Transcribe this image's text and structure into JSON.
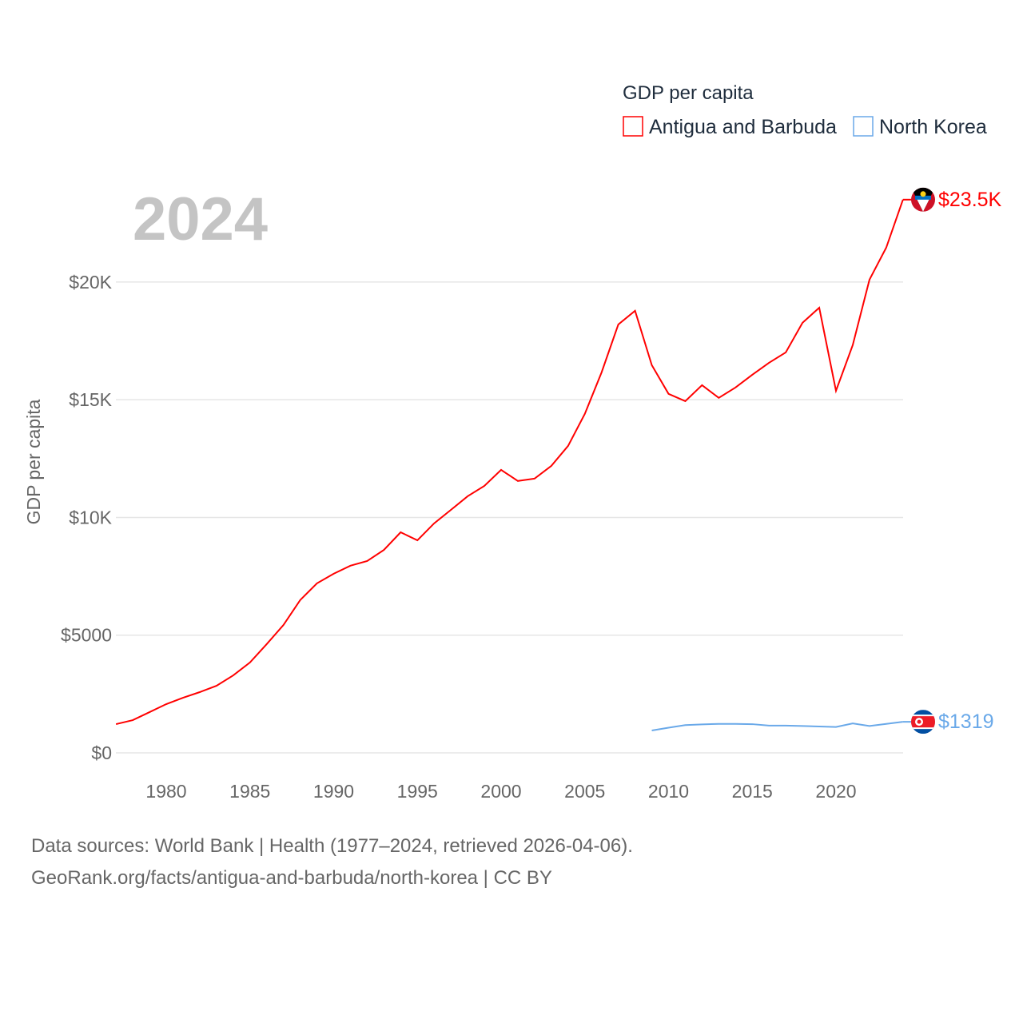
{
  "chart_data": {
    "type": "line",
    "title": "GDP per capita",
    "year_label": "2024",
    "ylabel": "GDP per capita",
    "xlabel": "",
    "xlim": [
      1977,
      2024
    ],
    "ylim": [
      0,
      23500
    ],
    "x_ticks": [
      1980,
      1985,
      1990,
      1995,
      2000,
      2005,
      2010,
      2015,
      2020
    ],
    "y_ticks": [
      {
        "v": 0,
        "label": "$0"
      },
      {
        "v": 5000,
        "label": "$5000"
      },
      {
        "v": 10000,
        "label": "$10K"
      },
      {
        "v": 15000,
        "label": "$15K"
      },
      {
        "v": 20000,
        "label": "$20K"
      }
    ],
    "grid": true,
    "legend_position": "top-right",
    "series": [
      {
        "name": "Antigua and Barbuda",
        "color": "#ff0000",
        "end_label": "$23.5K",
        "flag": "antigua-and-barbuda",
        "x": [
          1977,
          1978,
          1979,
          1980,
          1981,
          1982,
          1983,
          1984,
          1985,
          1986,
          1987,
          1988,
          1989,
          1990,
          1991,
          1992,
          1993,
          1994,
          1995,
          1996,
          1997,
          1998,
          1999,
          2000,
          2001,
          2002,
          2003,
          2004,
          2005,
          2006,
          2007,
          2008,
          2009,
          2010,
          2011,
          2012,
          2013,
          2014,
          2015,
          2016,
          2017,
          2018,
          2019,
          2020,
          2021,
          2022,
          2023,
          2024
        ],
        "values": [
          1220,
          1390,
          1730,
          2070,
          2340,
          2580,
          2850,
          3290,
          3840,
          4620,
          5430,
          6490,
          7200,
          7610,
          7950,
          8150,
          8620,
          9370,
          9030,
          9750,
          10320,
          10900,
          11340,
          12020,
          11550,
          11650,
          12190,
          13040,
          14400,
          16160,
          18200,
          18780,
          16470,
          15250,
          14940,
          15620,
          15080,
          15520,
          16060,
          16570,
          17010,
          18270,
          18910,
          15380,
          17320,
          20100,
          21460,
          23500
        ]
      },
      {
        "name": "North Korea",
        "color": "#6aa9e9",
        "end_label": "$1319",
        "flag": "north-korea",
        "x": [
          2009,
          2010,
          2011,
          2012,
          2013,
          2014,
          2015,
          2016,
          2017,
          2018,
          2019,
          2020,
          2021,
          2022,
          2023,
          2024
        ],
        "values": [
          950,
          1070,
          1180,
          1210,
          1230,
          1230,
          1220,
          1160,
          1160,
          1140,
          1120,
          1100,
          1250,
          1140,
          1230,
          1319
        ]
      }
    ]
  },
  "footer": {
    "line1": "Data sources: World Bank | Health (1977–2024, retrieved 2026-04-06).",
    "line2": "GeoRank.org/facts/antigua-and-barbuda/north-korea | CC BY"
  }
}
